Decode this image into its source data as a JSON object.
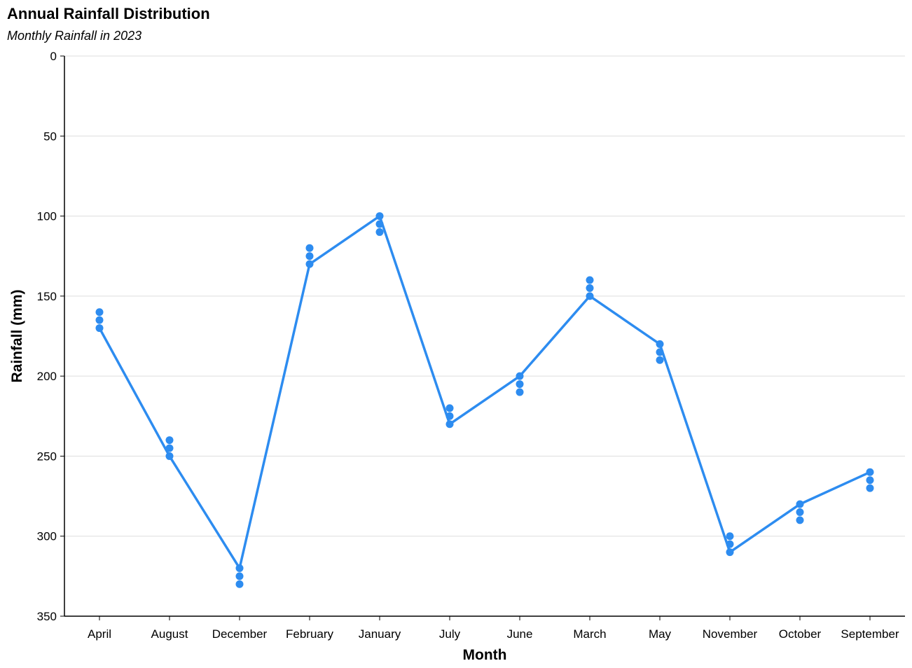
{
  "chart_data": {
    "type": "line",
    "title": "Annual Rainfall Distribution",
    "subtitle": "Monthly Rainfall in 2023",
    "xlabel": "Month",
    "ylabel": "Rainfall (mm)",
    "ylim": [
      0,
      350
    ],
    "y_reversed": true,
    "y_ticks": [
      0,
      50,
      100,
      150,
      200,
      250,
      300,
      350
    ],
    "grid": "horizontal",
    "categories": [
      "April",
      "August",
      "December",
      "February",
      "January",
      "July",
      "June",
      "March",
      "May",
      "November",
      "October",
      "September"
    ],
    "points": {
      "April": [
        160,
        165,
        170
      ],
      "August": [
        240,
        245,
        250
      ],
      "December": [
        320,
        325,
        330
      ],
      "February": [
        120,
        125,
        130
      ],
      "January": [
        100,
        105,
        110
      ],
      "July": [
        220,
        225,
        230
      ],
      "June": [
        200,
        205,
        210
      ],
      "March": [
        140,
        145,
        150
      ],
      "May": [
        180,
        185,
        190
      ],
      "November": [
        300,
        305,
        310
      ],
      "October": [
        280,
        285,
        290
      ],
      "September": [
        260,
        265,
        270
      ]
    },
    "line_path": [
      {
        "x": "April",
        "y": 170
      },
      {
        "x": "August",
        "y": 250
      },
      {
        "x": "December",
        "y": 320
      },
      {
        "x": "February",
        "y": 130
      },
      {
        "x": "January",
        "y": 100
      },
      {
        "x": "July",
        "y": 230
      },
      {
        "x": "June",
        "y": 200
      },
      {
        "x": "March",
        "y": 150
      },
      {
        "x": "May",
        "y": 180
      },
      {
        "x": "November",
        "y": 310
      },
      {
        "x": "October",
        "y": 280
      },
      {
        "x": "September",
        "y": 260
      }
    ],
    "colors": {
      "series": "#2d8cf0",
      "grid": "#dddddd",
      "axis": "#000000"
    }
  }
}
